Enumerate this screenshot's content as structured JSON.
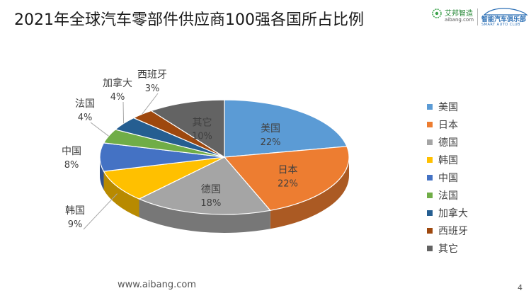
{
  "slide": {
    "title": "2021年全球汽车零部件供应商100强各国所占比例",
    "footer_url": "www.aibang.com",
    "page_number": "4"
  },
  "logos": {
    "aibang_cn": "艾邦智造",
    "aibang_en": "aibang.com",
    "club_cn": "智能汽车俱乐部",
    "club_en": "SMART AUTO CLUB"
  },
  "chart_data": {
    "type": "pie",
    "title": "",
    "categories": [
      "美国",
      "日本",
      "德国",
      "韩国",
      "中国",
      "法国",
      "加拿大",
      "西班牙",
      "其它"
    ],
    "values": [
      22,
      22,
      18,
      9,
      8,
      4,
      4,
      3,
      10
    ],
    "percent_labels": [
      "22%",
      "22%",
      "18%",
      "9%",
      "8%",
      "4%",
      "4%",
      "3%",
      "10%"
    ],
    "colors": [
      "#5b9bd5",
      "#ed7d31",
      "#a5a5a5",
      "#ffc000",
      "#4472c4",
      "#70ad47",
      "#255e91",
      "#9e480e",
      "#636363"
    ],
    "legend_position": "right",
    "style": "3d-pie"
  }
}
